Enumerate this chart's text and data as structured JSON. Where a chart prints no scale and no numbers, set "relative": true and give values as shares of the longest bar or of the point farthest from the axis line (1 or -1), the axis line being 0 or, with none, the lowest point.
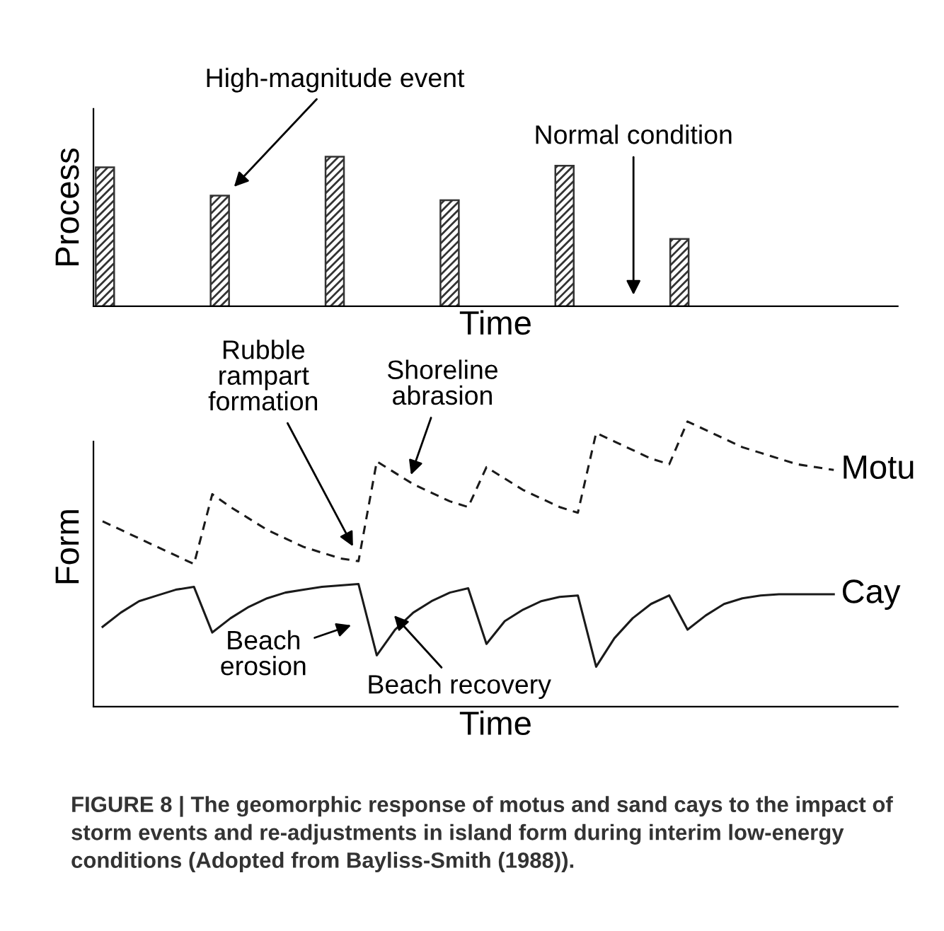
{
  "chart_data": [
    {
      "type": "bar",
      "relative": true,
      "ylabel": "Process",
      "xlabel": "Time",
      "legend": false,
      "grid": false,
      "tick_labels": false,
      "categories": [
        null,
        null,
        null,
        null,
        null,
        null
      ],
      "series": [
        {
          "color": "#333333",
          "values": [
            0.93,
            0.74,
            1,
            0.71,
            0.94,
            0.45
          ]
        }
      ],
      "annotations": [
        "High-magnitude event",
        "Normal condition"
      ]
    },
    {
      "type": "line",
      "relative": true,
      "ylabel": "Form",
      "xlabel": "Time",
      "legend": false,
      "grid": false,
      "tick_labels": false,
      "marker": "none",
      "categories": [
        null,
        null,
        null,
        null,
        null,
        null,
        null,
        null,
        null,
        null,
        null,
        null,
        null,
        null,
        null,
        null,
        null,
        null,
        null,
        null,
        null,
        null,
        null,
        null,
        null,
        null,
        null,
        null,
        null,
        null,
        null,
        null,
        null,
        null,
        null,
        null,
        null,
        null,
        null,
        null,
        null,
        null,
        null,
        null
      ],
      "series": [
        {
          "name": "Motu",
          "color": "#1a1a1a",
          "line_style": "dashed",
          "values": [
            0.65,
            0.62,
            0.59,
            0.56,
            0.53,
            0.5,
            0.745,
            0.7,
            0.66,
            0.62,
            0.59,
            0.56,
            0.54,
            0.52,
            0.51,
            0.86,
            0.82,
            0.78,
            0.75,
            0.72,
            0.7,
            0.84,
            0.8,
            0.76,
            0.73,
            0.7,
            0.68,
            0.96,
            0.93,
            0.9,
            0.87,
            0.85,
            1.0,
            0.97,
            0.94,
            0.91,
            0.89,
            0.87,
            0.85,
            0.84,
            0.83,
            null,
            null,
            null
          ]
        },
        {
          "name": "Cay",
          "color": "#1a1a1a",
          "line_style": "solid",
          "values": [
            0.28,
            0.33,
            0.37,
            0.39,
            0.41,
            0.42,
            0.26,
            0.31,
            0.35,
            0.38,
            0.4,
            0.41,
            0.42,
            0.425,
            0.43,
            0.18,
            0.27,
            0.33,
            0.37,
            0.4,
            0.415,
            0.22,
            0.3,
            0.34,
            0.37,
            0.385,
            0.39,
            0.14,
            0.24,
            0.31,
            0.36,
            0.39,
            0.27,
            0.32,
            0.36,
            0.38,
            0.39,
            0.394,
            0.394,
            0.394,
            0.394,
            null,
            null,
            null
          ]
        }
      ],
      "annotations": [
        "Rubble\nrampart\nformation",
        "Shoreline\nabrasion",
        "Beach\nerosion",
        "Beach recovery",
        "FIGURE 8 | The geomorphic response of motus and sand cays to the impact of storm events and re-adjustments in island form during interim low-energy conditions (Adopted from Bayliss-Smith (1988))."
      ]
    }
  ]
}
